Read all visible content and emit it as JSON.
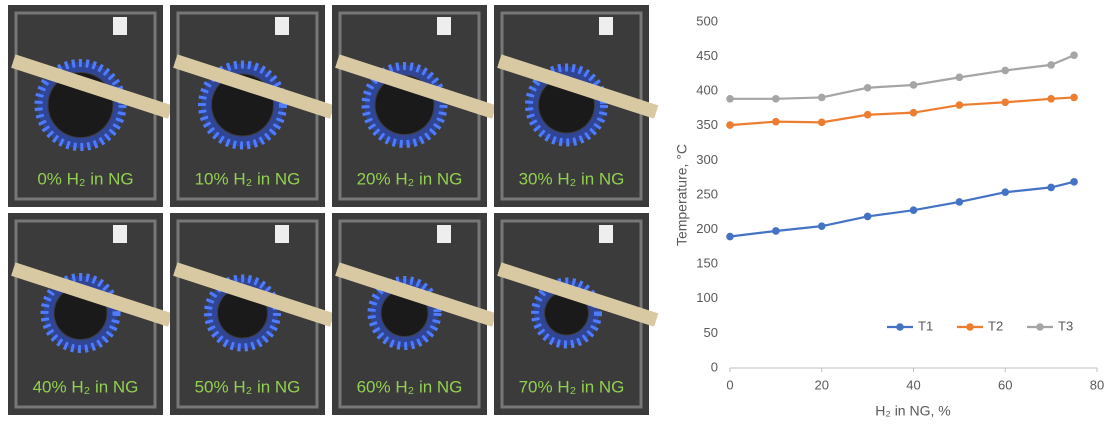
{
  "photos": [
    "0% H₂ in NG",
    "10% H₂ in NG",
    "20% H₂ in NG",
    "30% H₂ in NG",
    "40% H₂ in NG",
    "50% H₂ in NG",
    "60% H₂ in NG",
    "70% H₂ in NG"
  ],
  "chart_data": {
    "type": "line",
    "x_label": "H₂ in NG, %",
    "y_label": "Temperature, °C",
    "x": [
      0,
      10,
      20,
      30,
      40,
      50,
      60,
      70,
      75
    ],
    "series": [
      {
        "name": "T1",
        "color": "#4472c4",
        "values": [
          190,
          198,
          205,
          219,
          228,
          240,
          254,
          261,
          269
        ]
      },
      {
        "name": "T2",
        "color": "#ed7d31",
        "values": [
          351,
          356,
          355,
          366,
          369,
          380,
          384,
          389,
          391
        ]
      },
      {
        "name": "T3",
        "color": "#a5a5a5",
        "values": [
          389,
          389,
          391,
          405,
          409,
          420,
          430,
          438,
          452
        ]
      }
    ],
    "xlim": [
      0,
      80
    ],
    "xticks": [
      0,
      20,
      40,
      60,
      80
    ],
    "ylim": [
      0,
      500
    ],
    "yticks": [
      0,
      50,
      100,
      150,
      200,
      250,
      300,
      350,
      400,
      450,
      500
    ],
    "grid": false,
    "legend": "bottom-right"
  }
}
